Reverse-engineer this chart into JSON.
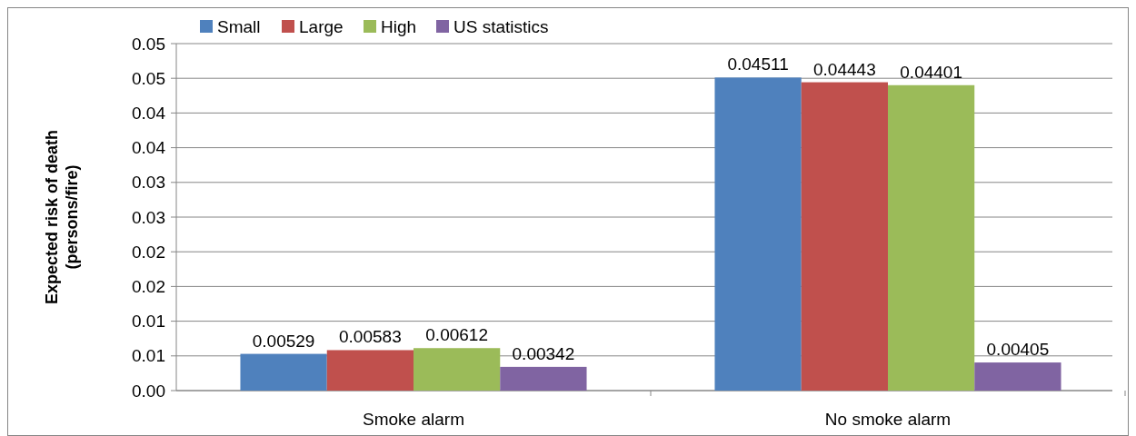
{
  "chart_data": {
    "type": "bar",
    "ylabel": "Expected risk of death\n(persons/fire)",
    "categories": [
      "Smoke alarm",
      "No smoke alarm"
    ],
    "series": [
      {
        "name": "Small",
        "color": "#4f81bd",
        "values": [
          0.00529,
          0.04511
        ]
      },
      {
        "name": "Large",
        "color": "#c0504d",
        "values": [
          0.00583,
          0.04443
        ]
      },
      {
        "name": "High",
        "color": "#9bbb59",
        "values": [
          0.00612,
          0.04401
        ]
      },
      {
        "name": "US statistics",
        "color": "#8064a2",
        "values": [
          0.00342,
          0.00405
        ]
      }
    ],
    "ylim": [
      0,
      0.05
    ],
    "yticks": [
      {
        "value": 0,
        "label": "0.00"
      },
      {
        "value": 0.005,
        "label": "0.01"
      },
      {
        "value": 0.01,
        "label": "0.01"
      },
      {
        "value": 0.015,
        "label": "0.02"
      },
      {
        "value": 0.02,
        "label": "0.02"
      },
      {
        "value": 0.025,
        "label": "0.03"
      },
      {
        "value": 0.03,
        "label": "0.03"
      },
      {
        "value": 0.035,
        "label": "0.04"
      },
      {
        "value": 0.04,
        "label": "0.04"
      },
      {
        "value": 0.045,
        "label": "0.05"
      },
      {
        "value": 0.05,
        "label": "0.05"
      }
    ],
    "grid": "y",
    "legend": "top left",
    "data_labels": true
  }
}
